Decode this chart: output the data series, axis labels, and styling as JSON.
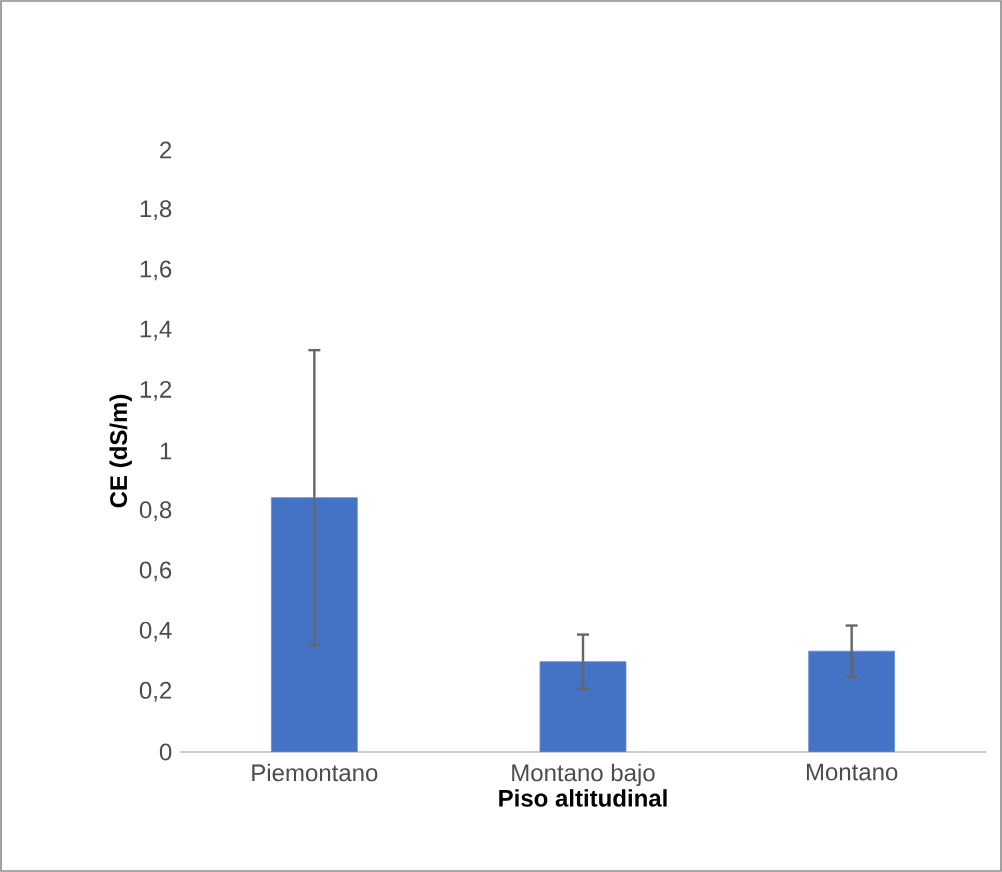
{
  "chart_data": {
    "type": "bar",
    "xlabel": "Piso altitudinal",
    "ylabel": "CE (dS/m)",
    "categories": [
      "Piemontano",
      "Montano bajo",
      "Montano"
    ],
    "values": [
      0.845,
      0.3,
      0.335
    ],
    "errors": [
      0.49,
      0.09,
      0.085
    ],
    "color": "#4472c4",
    "ylim": [
      0,
      2
    ],
    "yticks": [
      0,
      {
        "value": 0.2,
        "label": "0,2"
      },
      {
        "value": 0.4,
        "label": "0,4"
      },
      {
        "value": 0.6,
        "label": "0,6"
      },
      {
        "value": 0.8,
        "label": "0,8"
      },
      1,
      {
        "value": 1.2,
        "label": "1,2"
      },
      {
        "value": 1.4,
        "label": "1,4"
      },
      {
        "value": 1.6,
        "label": "1,6"
      },
      {
        "value": 1.8,
        "label": "1,8"
      },
      2
    ],
    "grid": false
  }
}
